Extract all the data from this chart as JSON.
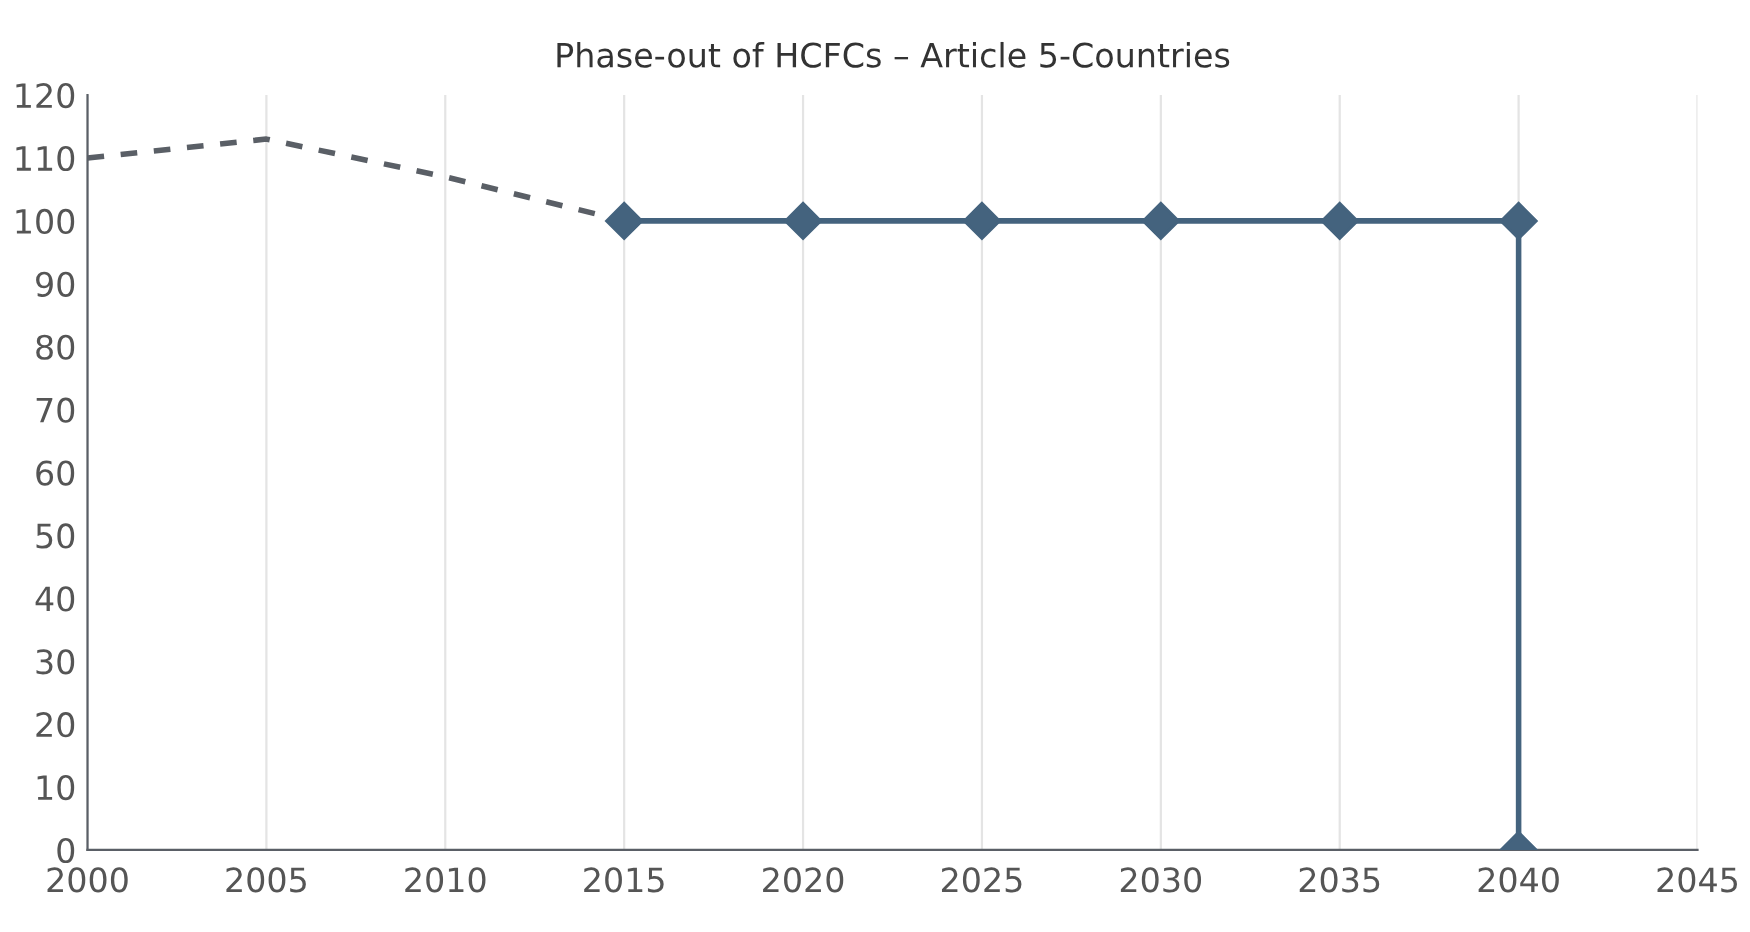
{
  "chart_data": {
    "type": "line",
    "title": "Phase-out of HCFCs – Article 5-Countries",
    "series": [
      {
        "x": [
          2000,
          2005,
          2010,
          2015
        ],
        "values": [
          110,
          113,
          107,
          100
        ],
        "color": "#5a5f66",
        "line_style": "dashed",
        "marker": "none"
      },
      {
        "x": [
          2015,
          2020,
          2025,
          2030,
          2035,
          2040,
          2040
        ],
        "values": [
          100,
          100,
          100,
          100,
          100,
          100,
          0
        ],
        "color": "#44637e",
        "line_style": "solid",
        "marker": "diamond"
      }
    ],
    "xlim": [
      2000,
      2045
    ],
    "xticks": [
      2000,
      2005,
      2010,
      2015,
      2020,
      2025,
      2030,
      2035,
      2040,
      2045
    ],
    "ylim": [
      0,
      120
    ],
    "yticks": [
      0,
      10,
      20,
      30,
      40,
      50,
      60,
      70,
      80,
      90,
      100,
      110,
      120
    ],
    "grid": "x",
    "legend": false
  }
}
